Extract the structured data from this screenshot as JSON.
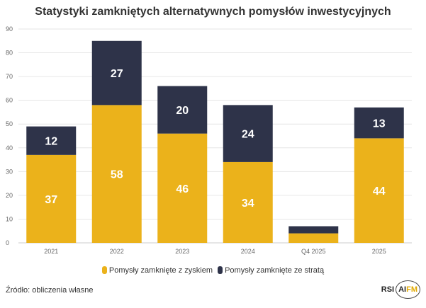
{
  "chart_data": {
    "type": "bar",
    "stacked": true,
    "title": "Statystyki zamkniętych alternatywnych pomysłów inwestycyjnych",
    "categories": [
      "2021",
      "2022",
      "2023",
      "2024",
      "Q4 2025",
      "2025"
    ],
    "series": [
      {
        "name": "Pomysły zamknięte z zyskiem",
        "color": "#ebb21b",
        "values": [
          37,
          58,
          46,
          34,
          4,
          44
        ]
      },
      {
        "name": "Pomysły zamknięte ze stratą",
        "color": "#2e3349",
        "values": [
          12,
          27,
          20,
          24,
          3,
          13
        ]
      }
    ],
    "ylim": [
      0,
      90
    ],
    "yticks": [
      0,
      10,
      20,
      30,
      40,
      50,
      60,
      70,
      80,
      90
    ],
    "grid": true,
    "legend": "bottom",
    "xlabel": "",
    "ylabel": ""
  },
  "source": "Źródło: obliczenia własne",
  "logo": {
    "left": "RSI",
    "right_a": "AI",
    "right_b": "FM"
  }
}
